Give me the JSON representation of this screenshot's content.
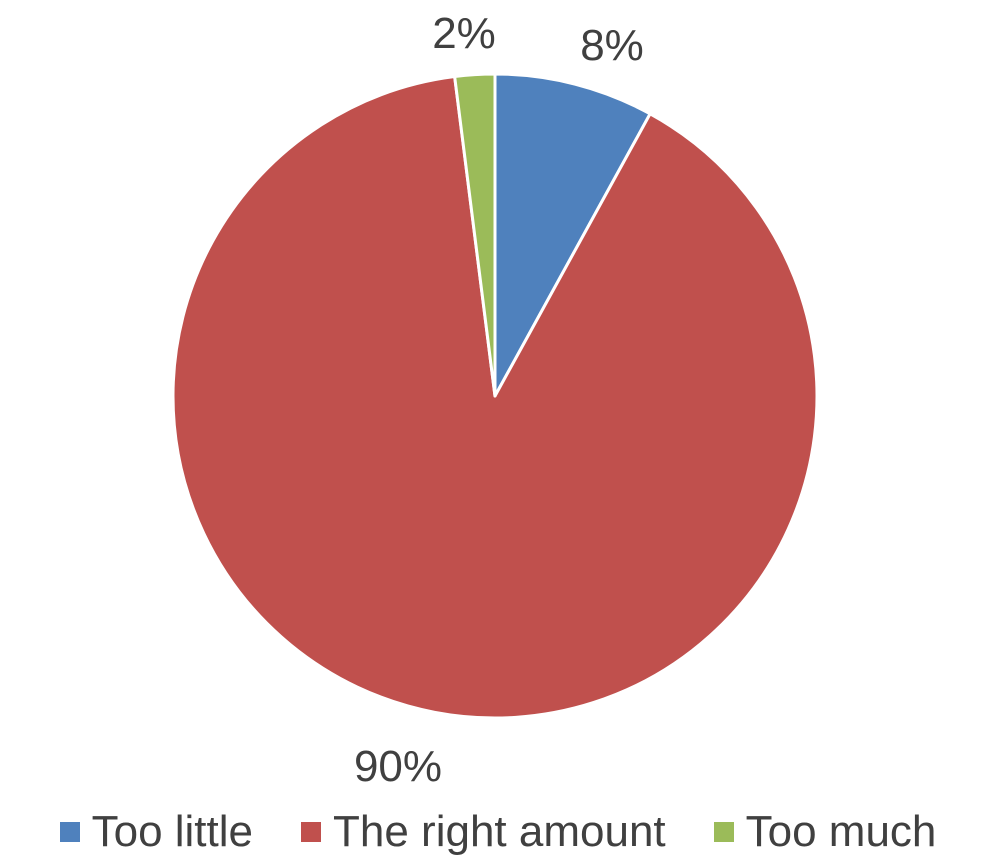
{
  "chart_data": {
    "type": "pie",
    "title": "",
    "slices": [
      {
        "label": "Too little",
        "value": 8,
        "display": "8%",
        "color": "#4F81BD"
      },
      {
        "label": "The right amount",
        "value": 90,
        "display": "90%",
        "color": "#C0504D"
      },
      {
        "label": "Too much",
        "value": 2,
        "display": "2%",
        "color": "#9BBB59"
      }
    ],
    "start_angle_deg": 0,
    "direction": "clockwise",
    "legend_position": "bottom",
    "slice_border_color": "#FFFFFF"
  }
}
